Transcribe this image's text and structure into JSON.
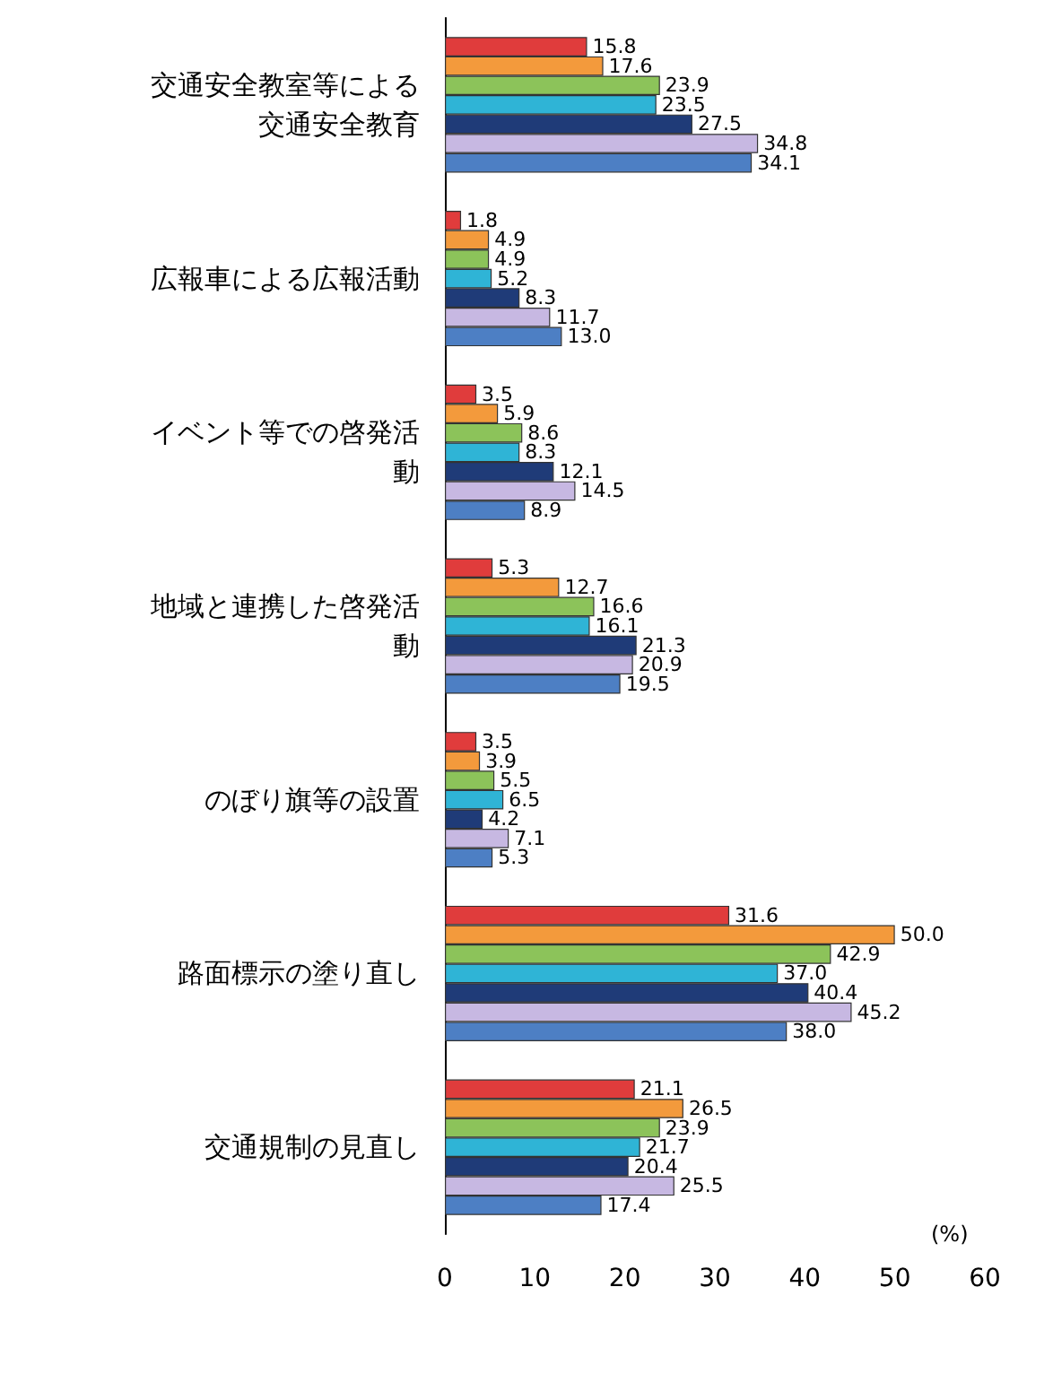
{
  "chart_data": {
    "type": "bar",
    "orientation": "horizontal",
    "xlabel": "(%)",
    "categories": [
      "交通安全教室等による交通安全教育",
      "広報車による広報活動",
      "イベント等での啓発活動",
      "地域と連携した啓発活動",
      "のぼり旗等の設置",
      "路面標示の塗り直し",
      "交通規制の見直し"
    ],
    "series": [
      {
        "color": "#e03c3c",
        "values": [
          15.8,
          1.8,
          3.5,
          5.3,
          3.5,
          31.6,
          21.1
        ],
        "value_labels": [
          "15.8",
          "1.8",
          "3.5",
          "5.3",
          "3.5",
          "31.6",
          "21.1"
        ]
      },
      {
        "color": "#f39a3c",
        "values": [
          17.6,
          4.9,
          5.9,
          12.7,
          3.9,
          50.0,
          26.5
        ],
        "value_labels": [
          "17.6",
          "4.9",
          "5.9",
          "12.7",
          "3.9",
          "50.0",
          "26.5"
        ]
      },
      {
        "color": "#8cc35a",
        "values": [
          23.9,
          4.9,
          8.6,
          16.6,
          5.5,
          42.9,
          23.9
        ],
        "value_labels": [
          "23.9",
          "4.9",
          "8.6",
          "16.6",
          "5.5",
          "42.9",
          "23.9"
        ]
      },
      {
        "color": "#2fb4d6",
        "values": [
          23.5,
          5.2,
          8.3,
          16.1,
          6.5,
          37.0,
          21.7
        ],
        "value_labels": [
          "23.5",
          "5.2",
          "8.3",
          "16.1",
          "6.5",
          "37.0",
          "21.7"
        ]
      },
      {
        "color": "#1f3b78",
        "values": [
          27.5,
          8.3,
          12.1,
          21.3,
          4.2,
          40.4,
          20.4
        ],
        "value_labels": [
          "27.5",
          "8.3",
          "12.1",
          "21.3",
          "4.2",
          "40.4",
          "20.4"
        ]
      },
      {
        "color": "#c7b8e2",
        "values": [
          34.8,
          11.7,
          14.5,
          20.9,
          7.1,
          45.2,
          25.5
        ],
        "value_labels": [
          "34.8",
          "11.7",
          "14.5",
          "20.9",
          "7.1",
          "45.2",
          "25.5"
        ]
      },
      {
        "color": "#4d7fc4",
        "values": [
          34.1,
          13.0,
          8.9,
          19.5,
          5.3,
          38.0,
          17.4
        ],
        "value_labels": [
          "34.1",
          "13.0",
          "8.9",
          "19.5",
          "5.3",
          "38.0",
          "17.4"
        ]
      }
    ],
    "xlim": [
      0,
      60
    ],
    "xticks": [
      0,
      10,
      20,
      30,
      40,
      50,
      60
    ],
    "grid": false
  }
}
